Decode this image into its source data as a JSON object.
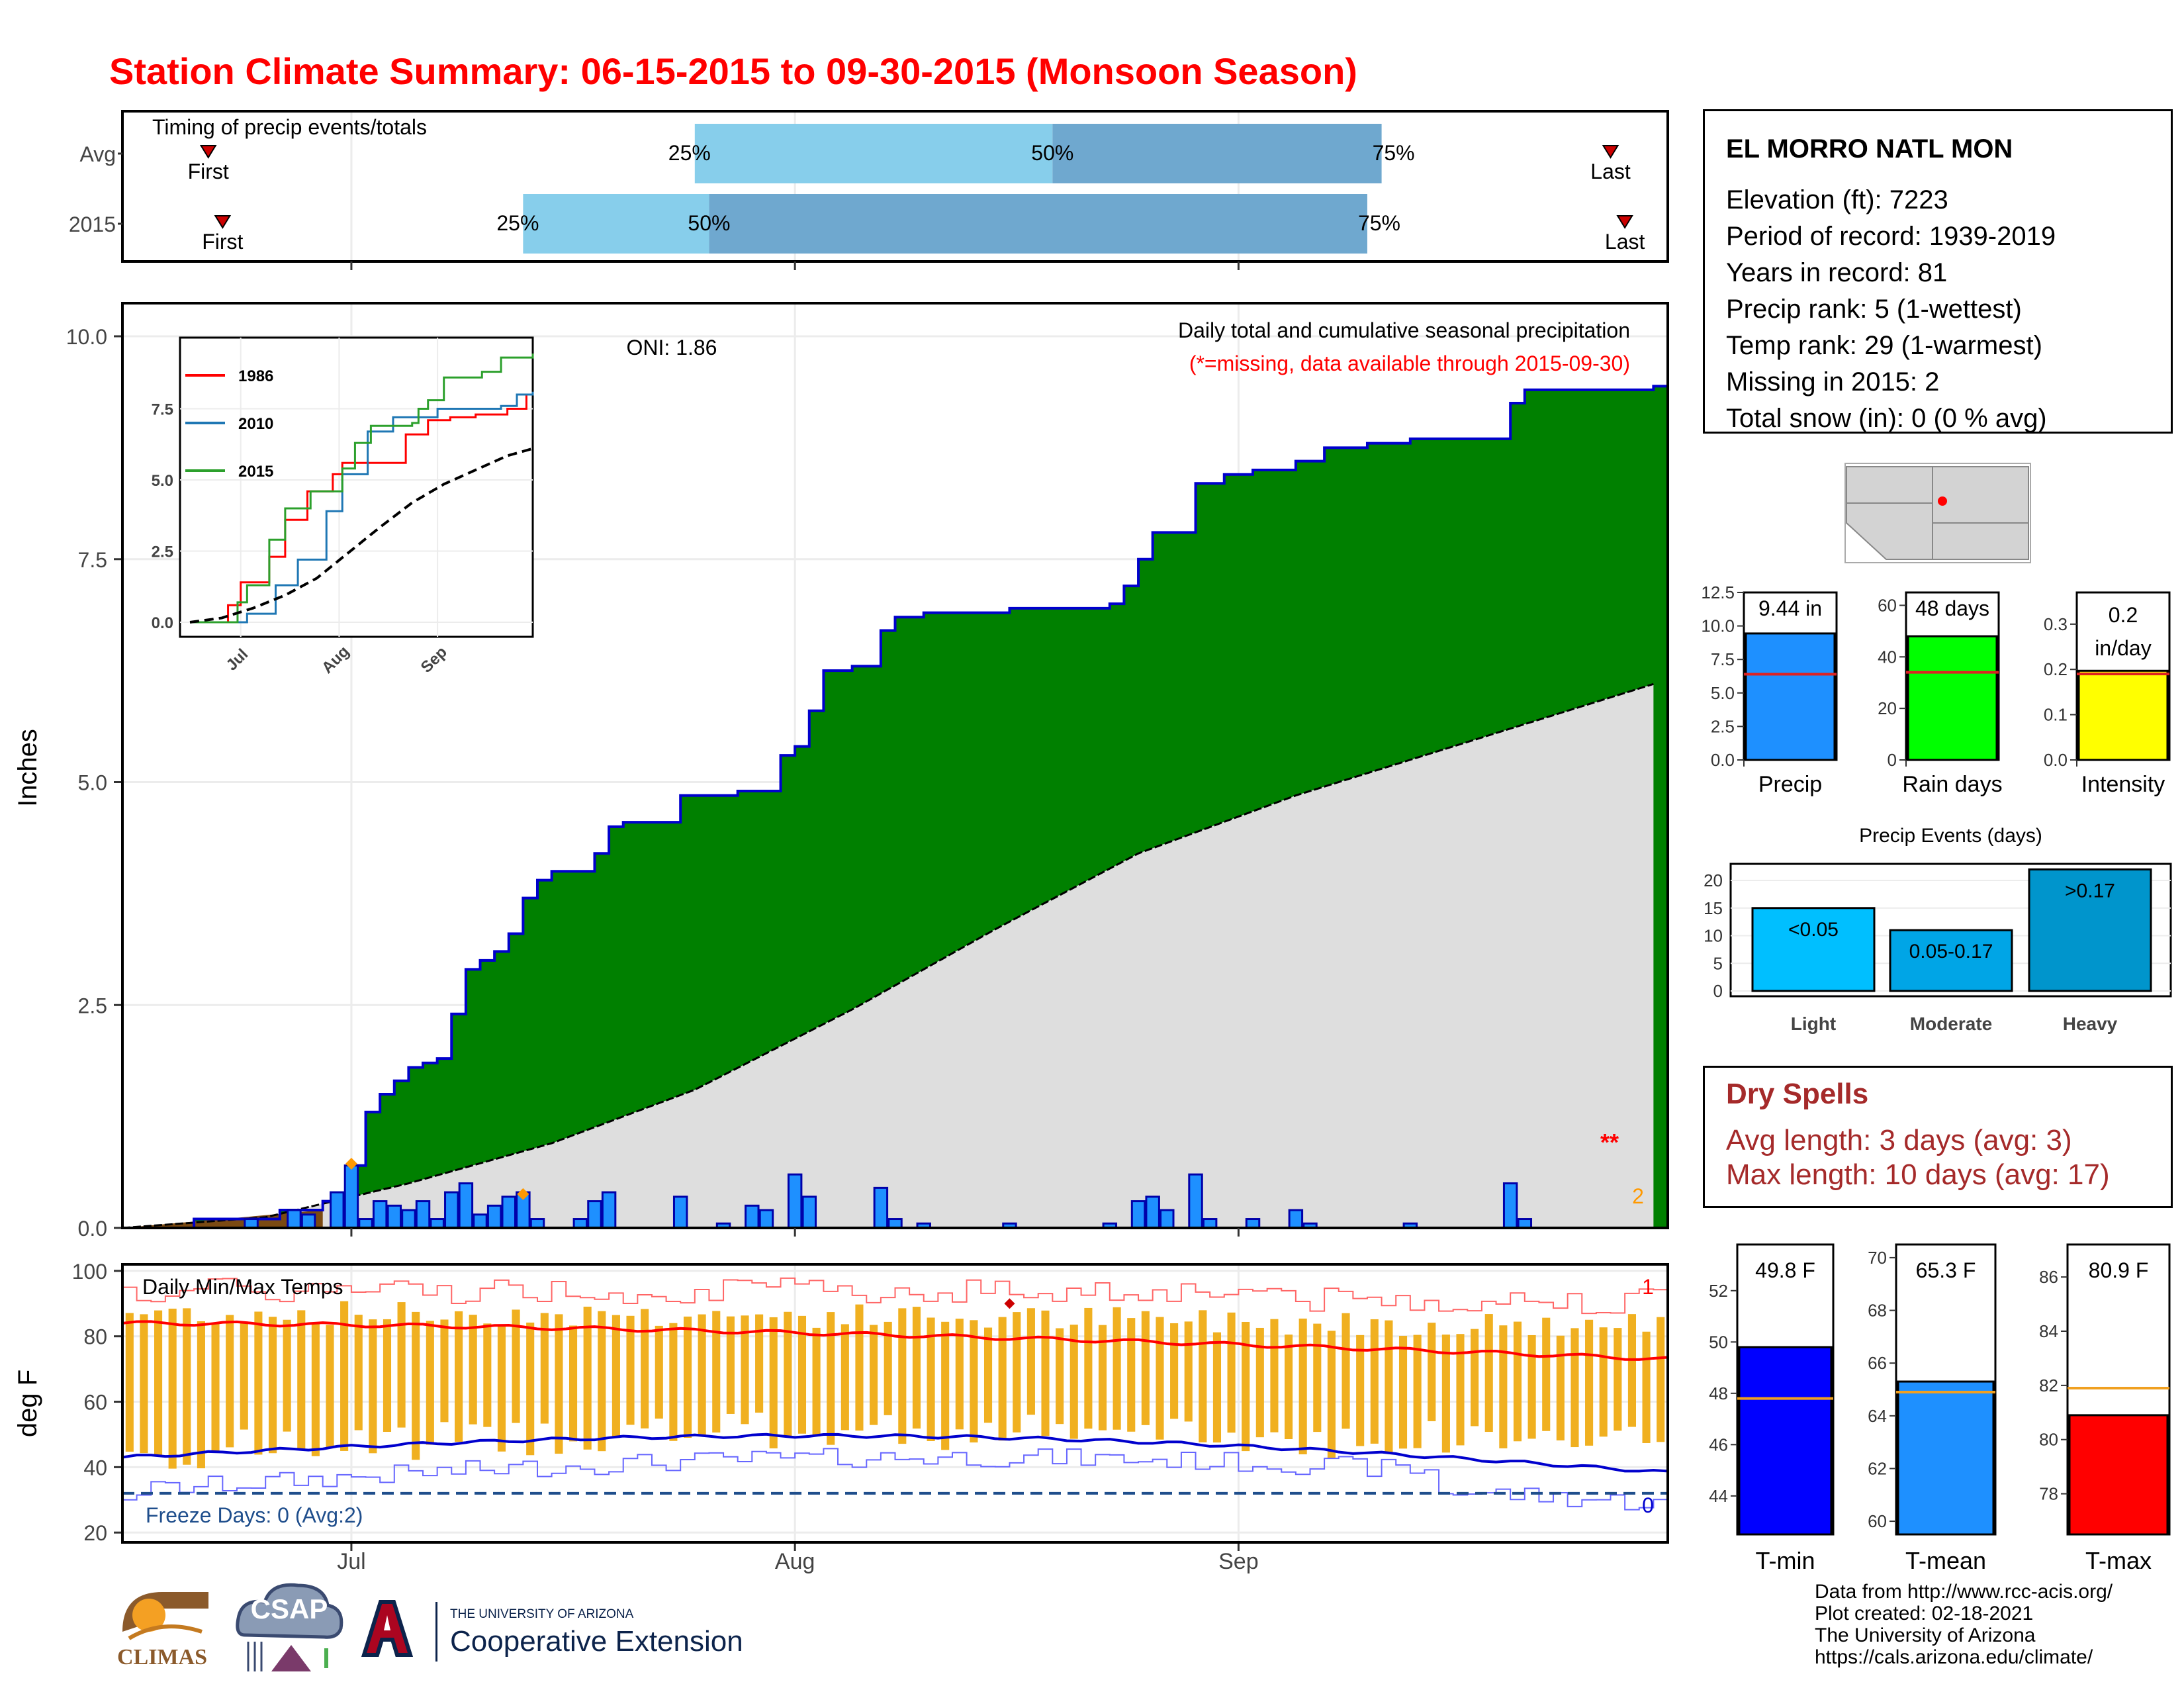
{
  "title": "Station Climate Summary: 06-15-2015 to 09-30-2015 (Monsoon Season)",
  "colors": {
    "title": "#ff0000",
    "green_fill": "#008000",
    "avg_fill": "#dedede",
    "bar_fill": "#1e90ff",
    "tmax": "#ff0000",
    "tmin": "#0000cd",
    "range_bar": "#f0b020",
    "timing_light": "#87ceeb",
    "timing_dark": "#6fa8cf",
    "dry_text": "#a52a2a"
  },
  "timing": {
    "title": "Timing of precip events/totals",
    "rows": [
      {
        "label": "Avg",
        "first": "First",
        "last": "Last",
        "p25": "25%",
        "p50": "50%",
        "p75": "75%"
      },
      {
        "label": "2015",
        "first": "First",
        "last": "Last",
        "p25": "25%",
        "p50": "50%",
        "p75": "75%"
      }
    ]
  },
  "main_chart": {
    "ylabel": "Inches",
    "oni": "ONI: 1.86",
    "subtitle": "Daily total and cumulative seasonal precipitation",
    "missing_note": "(*=missing, data available through 2015-09-30)",
    "missing_marker": "**",
    "missing_count": "2",
    "y_ticks": [
      "0.0",
      "2.5",
      "5.0",
      "7.5",
      "10.0"
    ],
    "x_ticks": [
      "Jul",
      "Aug",
      "Sep"
    ]
  },
  "inset": {
    "y_ticks": [
      "0.0",
      "2.5",
      "5.0",
      "7.5"
    ],
    "x_ticks": [
      "Jul",
      "Aug",
      "Sep"
    ],
    "legend": [
      "1986",
      "2010",
      "2015"
    ]
  },
  "temp_chart": {
    "title": "Daily Min/Max Temps",
    "ylabel": "deg F",
    "freeze_label": "Freeze Days: 0 (Avg:2)",
    "record_high_count": "1",
    "record_low_count": "0",
    "y_ticks": [
      "20",
      "40",
      "60",
      "80",
      "100"
    ],
    "x_ticks": [
      "Jul",
      "Aug",
      "Sep"
    ]
  },
  "station": {
    "name": "EL MORRO NATL MON",
    "lines": [
      "Elevation (ft): 7223",
      "Period of record: 1939-2019",
      "Years in record: 81",
      "Precip rank: 5 (1-wettest)",
      "Temp rank: 29 (1-warmest)",
      "Missing in 2015: 2",
      "Total snow (in): 0 (0 % avg)"
    ]
  },
  "summary_bars": [
    {
      "label": "Precip",
      "value_text": "9.44 in",
      "value": 9.44,
      "avg": 6.4,
      "ymax": 12.5,
      "ticks": [
        "0.0",
        "2.5",
        "5.0",
        "7.5",
        "10.0",
        "12.5"
      ],
      "color": "#1e90ff"
    },
    {
      "label": "Rain days",
      "value_text": "48 days",
      "value": 48,
      "avg": 34,
      "ymax": 65,
      "ticks": [
        "0",
        "20",
        "40",
        "60"
      ],
      "color": "#00ff00"
    },
    {
      "label": "Intensity",
      "value_text": "0.2 in/day",
      "value": 0.197,
      "avg": 0.19,
      "ymax": 0.37,
      "ticks": [
        "0.0",
        "0.1",
        "0.2",
        "0.3"
      ],
      "color": "#ffff00"
    }
  ],
  "precip_events": {
    "title": "Precip Events (days)",
    "ticks": [
      "0",
      "5",
      "10",
      "15",
      "20"
    ],
    "categories": [
      "Light",
      "Moderate",
      "Heavy"
    ],
    "values": [
      15,
      11,
      22
    ],
    "value_labels": [
      "<0.05",
      "0.05-0.17",
      ">0.17"
    ],
    "colors": [
      "#00bfff",
      "#00a5e6",
      "#0095cc"
    ]
  },
  "dry_spells": {
    "title": "Dry Spells",
    "avg_length": "Avg length: 3 days (avg: 3)",
    "max_length": "Max length: 10 days (avg: 17)"
  },
  "temp_bars": [
    {
      "label": "T-min",
      "value_text": "49.8 F",
      "value": 49.8,
      "avg": 47.8,
      "ticks": [
        "44",
        "46",
        "48",
        "50",
        "52"
      ],
      "ymin": 42.5,
      "ymax": 53.8,
      "color": "#0000ff"
    },
    {
      "label": "T-mean",
      "value_text": "65.3 F",
      "value": 65.3,
      "avg": 64.9,
      "ticks": [
        "60",
        "62",
        "64",
        "66",
        "68",
        "70"
      ],
      "ymin": 59.5,
      "ymax": 70.5,
      "color": "#1e90ff"
    },
    {
      "label": "T-max",
      "value_text": "80.9 F",
      "value": 80.9,
      "avg": 81.9,
      "ticks": [
        "78",
        "80",
        "82",
        "84",
        "86"
      ],
      "ymin": 76.5,
      "ymax": 87.2,
      "color": "#ff0000"
    }
  ],
  "credits": [
    "Data from http://www.rcc-acis.org/",
    "Plot created: 02-18-2021",
    "The University of Arizona",
    "https://cals.arizona.edu/climate/"
  ],
  "logos": {
    "climas": "CLIMAS",
    "csap": "CSAP",
    "ua_small": "THE UNIVERSITY OF ARIZONA",
    "ua_big": "Cooperative Extension"
  },
  "chart_data": [
    {
      "type": "area",
      "title": "Daily total and cumulative seasonal precipitation",
      "ylabel": "Inches",
      "ylim": [
        0,
        10.0
      ],
      "x_start": "2015-06-15",
      "x_end": "2015-09-30",
      "cumulative_2015_points": [
        [
          "2015-06-15",
          0.0
        ],
        [
          "2015-06-20",
          0.1
        ],
        [
          "2015-06-26",
          0.2
        ],
        [
          "2015-06-29",
          0.3
        ],
        [
          "2015-07-01",
          0.7
        ],
        [
          "2015-07-02",
          1.3
        ],
        [
          "2015-07-03",
          1.5
        ],
        [
          "2015-07-04",
          1.65
        ],
        [
          "2015-07-05",
          1.8
        ],
        [
          "2015-07-06",
          1.85
        ],
        [
          "2015-07-07",
          1.9
        ],
        [
          "2015-07-08",
          2.4
        ],
        [
          "2015-07-09",
          2.9
        ],
        [
          "2015-07-10",
          3.0
        ],
        [
          "2015-07-11",
          3.1
        ],
        [
          "2015-07-12",
          3.3
        ],
        [
          "2015-07-13",
          3.7
        ],
        [
          "2015-07-14",
          3.9
        ],
        [
          "2015-07-15",
          4.0
        ],
        [
          "2015-07-18",
          4.2
        ],
        [
          "2015-07-19",
          4.5
        ],
        [
          "2015-07-20",
          4.55
        ],
        [
          "2015-07-24",
          4.85
        ],
        [
          "2015-07-28",
          4.9
        ],
        [
          "2015-07-31",
          5.3
        ],
        [
          "2015-08-01",
          5.4
        ],
        [
          "2015-08-02",
          5.8
        ],
        [
          "2015-08-03",
          6.25
        ],
        [
          "2015-08-05",
          6.3
        ],
        [
          "2015-08-07",
          6.7
        ],
        [
          "2015-08-08",
          6.85
        ],
        [
          "2015-08-10",
          6.9
        ],
        [
          "2015-08-16",
          6.95
        ],
        [
          "2015-08-23",
          7.0
        ],
        [
          "2015-08-24",
          7.2
        ],
        [
          "2015-08-25",
          7.5
        ],
        [
          "2015-08-26",
          7.8
        ],
        [
          "2015-08-29",
          8.35
        ],
        [
          "2015-08-31",
          8.45
        ],
        [
          "2015-09-02",
          8.5
        ],
        [
          "2015-09-05",
          8.6
        ],
        [
          "2015-09-07",
          8.75
        ],
        [
          "2015-09-10",
          8.8
        ],
        [
          "2015-09-13",
          8.85
        ],
        [
          "2015-09-20",
          9.25
        ],
        [
          "2015-09-21",
          9.4
        ],
        [
          "2015-09-30",
          9.44
        ]
      ],
      "avg_cumulative_points": [
        [
          "2015-06-15",
          0.0
        ],
        [
          "2015-06-25",
          0.12
        ],
        [
          "2015-07-05",
          0.5
        ],
        [
          "2015-07-15",
          0.95
        ],
        [
          "2015-07-25",
          1.55
        ],
        [
          "2015-08-05",
          2.45
        ],
        [
          "2015-08-15",
          3.35
        ],
        [
          "2015-08-25",
          4.2
        ],
        [
          "2015-09-05",
          4.85
        ],
        [
          "2015-09-15",
          5.35
        ],
        [
          "2015-09-25",
          5.85
        ],
        [
          "2015-09-30",
          6.1
        ]
      ],
      "daily_precip": [
        [
          "2015-06-24",
          0.1
        ],
        [
          "2015-06-27",
          0.2
        ],
        [
          "2015-06-28",
          0.15
        ],
        [
          "2015-06-30",
          0.4
        ],
        [
          "2015-07-01",
          0.7
        ],
        [
          "2015-07-02",
          0.1
        ],
        [
          "2015-07-03",
          0.3
        ],
        [
          "2015-07-04",
          0.25
        ],
        [
          "2015-07-05",
          0.2
        ],
        [
          "2015-07-06",
          0.3
        ],
        [
          "2015-07-07",
          0.1
        ],
        [
          "2015-07-08",
          0.4
        ],
        [
          "2015-07-09",
          0.5
        ],
        [
          "2015-07-10",
          0.15
        ],
        [
          "2015-07-11",
          0.25
        ],
        [
          "2015-07-12",
          0.35
        ],
        [
          "2015-07-13",
          0.4
        ],
        [
          "2015-07-14",
          0.1
        ],
        [
          "2015-07-17",
          0.1
        ],
        [
          "2015-07-18",
          0.3
        ],
        [
          "2015-07-19",
          0.4
        ],
        [
          "2015-07-24",
          0.35
        ],
        [
          "2015-07-27",
          0.05
        ],
        [
          "2015-07-29",
          0.25
        ],
        [
          "2015-07-30",
          0.2
        ],
        [
          "2015-08-01",
          0.6
        ],
        [
          "2015-08-02",
          0.35
        ],
        [
          "2015-08-07",
          0.45
        ],
        [
          "2015-08-08",
          0.1
        ],
        [
          "2015-08-10",
          0.05
        ],
        [
          "2015-08-16",
          0.05
        ],
        [
          "2015-08-23",
          0.05
        ],
        [
          "2015-08-25",
          0.3
        ],
        [
          "2015-08-26",
          0.35
        ],
        [
          "2015-08-27",
          0.2
        ],
        [
          "2015-08-29",
          0.6
        ],
        [
          "2015-08-30",
          0.1
        ],
        [
          "2015-09-02",
          0.1
        ],
        [
          "2015-09-05",
          0.2
        ],
        [
          "2015-09-06",
          0.05
        ],
        [
          "2015-09-13",
          0.05
        ],
        [
          "2015-09-20",
          0.5
        ],
        [
          "2015-09-21",
          0.1
        ]
      ]
    },
    {
      "type": "line",
      "title": "",
      "series": [
        {
          "name": "1986",
          "color": "#ff0000"
        },
        {
          "name": "2010",
          "color": "#1f77b4"
        },
        {
          "name": "2015",
          "color": "#2ca02c"
        }
      ],
      "ylim": [
        0,
        10.0
      ]
    },
    {
      "type": "bar",
      "title": "Daily Min/Max Temps",
      "ylabel": "deg F",
      "ylim": [
        18,
        102
      ],
      "freeze_line": 32,
      "avg_tmax_start": 84,
      "avg_tmax_end": 73,
      "avg_tmin_start": 43,
      "avg_tmin_end": 38
    },
    {
      "type": "bar",
      "title": "Precip Events (days)",
      "categories": [
        "Light",
        "Moderate",
        "Heavy"
      ],
      "values": [
        15,
        11,
        22
      ]
    }
  ]
}
